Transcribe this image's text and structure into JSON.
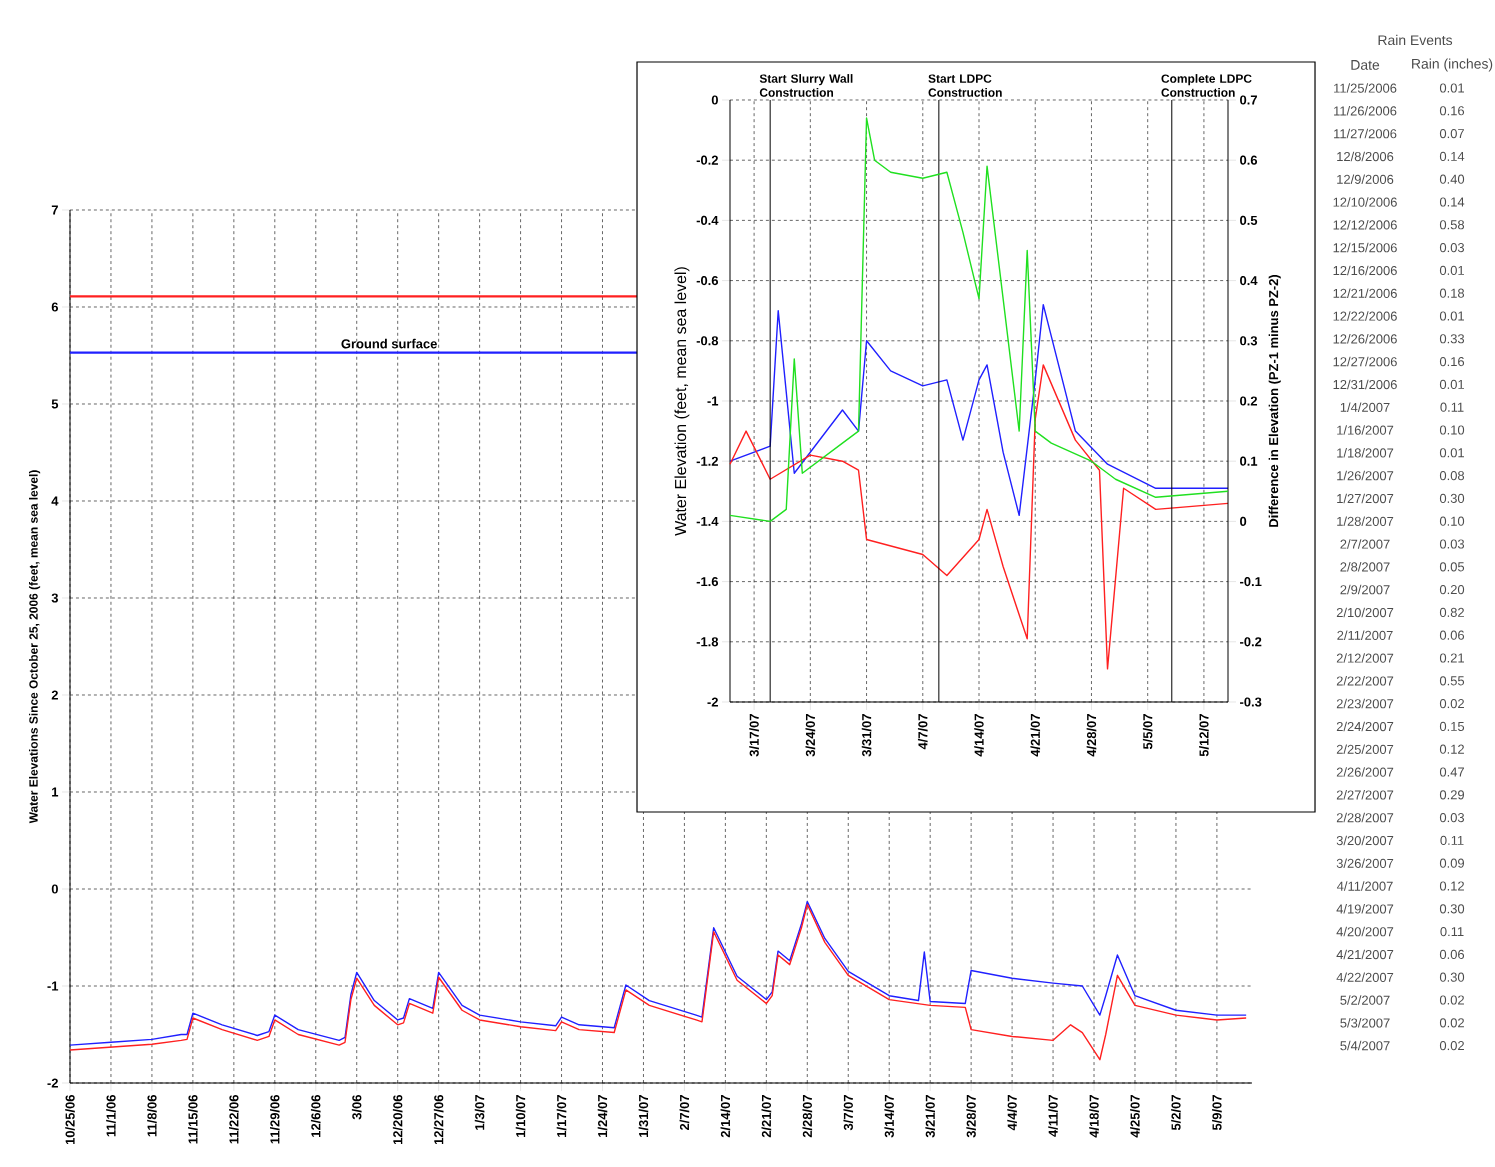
{
  "chart_data": [
    {
      "type": "line",
      "ylabel": "Water Elevations Since October 25, 2006 (feet, mean sea level)",
      "xlim": [
        "2006-10-25",
        "2007-05-15"
      ],
      "ylim": [
        -2,
        7
      ],
      "yticks": [
        -2,
        -1,
        0,
        1,
        2,
        3,
        4,
        5,
        6,
        7
      ],
      "grid": true,
      "xticks": [
        {
          "value": "2006-10-25",
          "label": "10/25/06"
        },
        {
          "value": "2006-11-01",
          "label": "11/1/06"
        },
        {
          "value": "2006-11-08",
          "label": "11/8/06"
        },
        {
          "value": "2006-11-15",
          "label": "11/15/06"
        },
        {
          "value": "2006-11-22",
          "label": "11/22/06"
        },
        {
          "value": "2006-11-29",
          "label": "11/29/06"
        },
        {
          "value": "2006-12-06",
          "label": "12/6/06"
        },
        {
          "value": "2006-12-13",
          "label": "3/06"
        },
        {
          "value": "2006-12-20",
          "label": "12/20/06"
        },
        {
          "value": "2006-12-27",
          "label": "12/27/06"
        },
        {
          "value": "2007-01-03",
          "label": "1/3/07"
        },
        {
          "value": "2007-01-10",
          "label": "1/10/07"
        },
        {
          "value": "2007-01-17",
          "label": "1/17/07"
        },
        {
          "value": "2007-01-24",
          "label": "1/24/07"
        },
        {
          "value": "2007-01-31",
          "label": "1/31/07"
        },
        {
          "value": "2007-02-07",
          "label": "2/7/07"
        },
        {
          "value": "2007-02-14",
          "label": "2/14/07"
        },
        {
          "value": "2007-02-21",
          "label": "2/21/07"
        },
        {
          "value": "2007-02-28",
          "label": "2/28/07"
        },
        {
          "value": "2007-03-07",
          "label": "3/7/07"
        },
        {
          "value": "2007-03-14",
          "label": "3/14/07"
        },
        {
          "value": "2007-03-21",
          "label": "3/21/07"
        },
        {
          "value": "2007-03-28",
          "label": "3/28/07"
        },
        {
          "value": "2007-04-04",
          "label": "4/4/07"
        },
        {
          "value": "2007-04-11",
          "label": "4/11/07"
        },
        {
          "value": "2007-04-18",
          "label": "4/18/07"
        },
        {
          "value": "2007-04-25",
          "label": "4/25/07"
        },
        {
          "value": "2007-05-02",
          "label": "5/2/07"
        },
        {
          "value": "2007-05-09",
          "label": "5/9/07"
        }
      ],
      "ref_lines": [
        {
          "axis": "y",
          "value": 6.11,
          "color": "#ff2020",
          "label": null
        },
        {
          "axis": "y",
          "value": 5.53,
          "color": "#2020ff",
          "label": "Ground surface"
        }
      ],
      "series": [
        {
          "color": "#2020ff",
          "x": [
            "2006-10-25",
            "2006-11-01",
            "2006-11-08",
            "2006-11-13",
            "2006-11-14",
            "2006-11-15",
            "2006-11-20",
            "2006-11-26",
            "2006-11-28",
            "2006-11-29",
            "2006-12-03",
            "2006-12-10",
            "2006-12-11",
            "2006-12-12",
            "2006-12-13",
            "2006-12-16",
            "2006-12-20",
            "2006-12-21",
            "2006-12-22",
            "2006-12-26",
            "2006-12-27",
            "2006-12-31",
            "2007-01-03",
            "2007-01-10",
            "2007-01-16",
            "2007-01-17",
            "2007-01-20",
            "2007-01-26",
            "2007-01-28",
            "2007-02-01",
            "2007-02-09",
            "2007-02-10",
            "2007-02-12",
            "2007-02-16",
            "2007-02-21",
            "2007-02-22",
            "2007-02-23",
            "2007-02-25",
            "2007-02-27",
            "2007-02-28",
            "2007-03-03",
            "2007-03-07",
            "2007-03-14",
            "2007-03-19",
            "2007-03-20",
            "2007-03-21",
            "2007-03-27",
            "2007-03-28",
            "2007-04-04",
            "2007-04-11",
            "2007-04-16",
            "2007-04-19",
            "2007-04-20",
            "2007-04-22",
            "2007-04-25",
            "2007-05-02",
            "2007-05-09",
            "2007-05-14"
          ],
          "values": [
            -1.61,
            -1.58,
            -1.55,
            -1.5,
            -1.5,
            -1.28,
            -1.4,
            -1.51,
            -1.47,
            -1.3,
            -1.45,
            -1.56,
            -1.53,
            -1.09,
            -0.86,
            -1.15,
            -1.35,
            -1.33,
            -1.13,
            -1.23,
            -0.86,
            -1.2,
            -1.3,
            -1.37,
            -1.41,
            -1.32,
            -1.4,
            -1.43,
            -0.99,
            -1.15,
            -1.3,
            -1.32,
            -0.4,
            -0.9,
            -1.14,
            -1.06,
            -0.64,
            -0.74,
            -0.36,
            -0.13,
            -0.51,
            -0.85,
            -1.1,
            -1.15,
            -0.65,
            -1.16,
            -1.18,
            -0.84,
            -0.92,
            -0.97,
            -1.0,
            -1.3,
            -1.1,
            -0.68,
            -1.1,
            -1.25,
            -1.3,
            -1.3
          ]
        },
        {
          "color": "#ff2020",
          "x": [
            "2006-10-25",
            "2006-11-01",
            "2006-11-08",
            "2006-11-13",
            "2006-11-14",
            "2006-11-15",
            "2006-11-20",
            "2006-11-26",
            "2006-11-28",
            "2006-11-29",
            "2006-12-03",
            "2006-12-10",
            "2006-12-11",
            "2006-12-12",
            "2006-12-13",
            "2006-12-16",
            "2006-12-20",
            "2006-12-21",
            "2006-12-22",
            "2006-12-26",
            "2006-12-27",
            "2006-12-31",
            "2007-01-03",
            "2007-01-10",
            "2007-01-16",
            "2007-01-17",
            "2007-01-20",
            "2007-01-26",
            "2007-01-28",
            "2007-02-01",
            "2007-02-09",
            "2007-02-10",
            "2007-02-12",
            "2007-02-16",
            "2007-02-21",
            "2007-02-22",
            "2007-02-23",
            "2007-02-25",
            "2007-02-27",
            "2007-02-28",
            "2007-03-03",
            "2007-03-07",
            "2007-03-14",
            "2007-03-21",
            "2007-03-27",
            "2007-03-28",
            "2007-04-04",
            "2007-04-11",
            "2007-04-14",
            "2007-04-16",
            "2007-04-19",
            "2007-04-20",
            "2007-04-22",
            "2007-04-25",
            "2007-05-02",
            "2007-05-09",
            "2007-05-14"
          ],
          "values": [
            -1.66,
            -1.63,
            -1.6,
            -1.56,
            -1.55,
            -1.33,
            -1.45,
            -1.56,
            -1.52,
            -1.35,
            -1.5,
            -1.61,
            -1.58,
            -1.14,
            -0.92,
            -1.2,
            -1.4,
            -1.38,
            -1.18,
            -1.28,
            -0.91,
            -1.25,
            -1.35,
            -1.42,
            -1.46,
            -1.37,
            -1.45,
            -1.48,
            -1.04,
            -1.2,
            -1.35,
            -1.37,
            -0.44,
            -0.94,
            -1.18,
            -1.1,
            -0.68,
            -0.78,
            -0.4,
            -0.16,
            -0.55,
            -0.89,
            -1.14,
            -1.2,
            -1.22,
            -1.45,
            -1.52,
            -1.56,
            -1.4,
            -1.48,
            -1.76,
            -1.5,
            -0.89,
            -1.2,
            -1.3,
            -1.35,
            -1.33
          ]
        }
      ]
    },
    {
      "type": "line",
      "ylabel": "Water Elevation (feet, mean sea level)",
      "y2label": "Difference in Elevation (PZ-1 minus PZ-2)",
      "xlim": [
        "2007-03-14",
        "2007-05-15"
      ],
      "ylim": [
        -2,
        0
      ],
      "yticks": [
        -2,
        -1.8,
        -1.6,
        -1.4,
        -1.2,
        -1,
        -0.8,
        -0.6,
        -0.4,
        -0.2,
        0
      ],
      "y2lim": [
        -0.3,
        0.7
      ],
      "y2ticks": [
        -0.3,
        -0.2,
        -0.1,
        0,
        0.1,
        0.2,
        0.3,
        0.4,
        0.5,
        0.6,
        0.7
      ],
      "grid": true,
      "xticks": [
        {
          "value": "2007-03-17",
          "label": "3/17/07"
        },
        {
          "value": "2007-03-24",
          "label": "3/24/07"
        },
        {
          "value": "2007-03-31",
          "label": "3/31/07"
        },
        {
          "value": "2007-04-07",
          "label": "4/7/07"
        },
        {
          "value": "2007-04-14",
          "label": "4/14/07"
        },
        {
          "value": "2007-04-21",
          "label": "4/21/07"
        },
        {
          "value": "2007-04-28",
          "label": "4/28/07"
        },
        {
          "value": "2007-05-05",
          "label": "5/5/07"
        },
        {
          "value": "2007-05-12",
          "label": "5/12/07"
        }
      ],
      "ref_lines": [
        {
          "axis": "x",
          "value": "2007-03-19",
          "label": "Start Slurry Wall Construction"
        },
        {
          "axis": "x",
          "value": "2007-04-09",
          "label": "Start LDPC Construction"
        },
        {
          "axis": "x",
          "value": "2007-05-08",
          "label": "Complete LDPC Construction"
        }
      ],
      "series": [
        {
          "color": "#2020ff",
          "x": [
            "2007-03-14",
            "2007-03-19",
            "2007-03-20",
            "2007-03-22",
            "2007-03-28",
            "2007-03-30",
            "2007-03-31",
            "2007-04-03",
            "2007-04-07",
            "2007-04-10",
            "2007-04-12",
            "2007-04-14",
            "2007-04-15",
            "2007-04-17",
            "2007-04-19",
            "2007-04-21",
            "2007-04-22",
            "2007-04-26",
            "2007-04-30",
            "2007-05-06",
            "2007-05-15"
          ],
          "values": [
            -1.2,
            -1.15,
            -0.7,
            -1.24,
            -1.03,
            -1.1,
            -0.8,
            -0.9,
            -0.95,
            -0.93,
            -1.13,
            -0.93,
            -0.88,
            -1.17,
            -1.38,
            -0.93,
            -0.68,
            -1.1,
            -1.21,
            -1.29,
            -1.29
          ]
        },
        {
          "color": "#ff2020",
          "x": [
            "2007-03-14",
            "2007-03-16",
            "2007-03-19",
            "2007-03-24",
            "2007-03-28",
            "2007-03-30",
            "2007-03-31",
            "2007-04-07",
            "2007-04-10",
            "2007-04-14",
            "2007-04-15",
            "2007-04-17",
            "2007-04-20",
            "2007-04-21",
            "2007-04-22",
            "2007-04-26",
            "2007-04-29",
            "2007-04-30",
            "2007-05-02",
            "2007-05-06",
            "2007-05-15"
          ],
          "values": [
            -1.21,
            -1.1,
            -1.26,
            -1.18,
            -1.2,
            -1.23,
            -1.46,
            -1.51,
            -1.58,
            -1.46,
            -1.36,
            -1.55,
            -1.79,
            -1.06,
            -0.88,
            -1.13,
            -1.23,
            -1.89,
            -1.29,
            -1.36,
            -1.34
          ]
        },
        {
          "color": "#20e020",
          "axis": "y2",
          "x": [
            "2007-03-14",
            "2007-03-19",
            "2007-03-21",
            "2007-03-22",
            "2007-03-23",
            "2007-03-28",
            "2007-03-30",
            "2007-03-31",
            "2007-04-01",
            "2007-04-03",
            "2007-04-07",
            "2007-04-10",
            "2007-04-12",
            "2007-04-14",
            "2007-04-15",
            "2007-04-17",
            "2007-04-19",
            "2007-04-20",
            "2007-04-21",
            "2007-04-23",
            "2007-04-28",
            "2007-05-01",
            "2007-05-06",
            "2007-05-15"
          ],
          "values": [
            0.01,
            0.0,
            0.02,
            0.27,
            0.08,
            0.13,
            0.15,
            0.67,
            0.6,
            0.58,
            0.57,
            0.58,
            0.48,
            0.37,
            0.59,
            0.37,
            0.15,
            0.45,
            0.15,
            0.13,
            0.1,
            0.07,
            0.04,
            0.05
          ]
        }
      ]
    },
    {
      "type": "other",
      "title": "Rain Events",
      "xlabel": "Date",
      "ylabel": "Rain (inches)",
      "categories": [
        "11/25/2006",
        "11/26/2006",
        "11/27/2006",
        "12/8/2006",
        "12/9/2006",
        "12/10/2006",
        "12/12/2006",
        "12/15/2006",
        "12/16/2006",
        "12/21/2006",
        "12/22/2006",
        "12/26/2006",
        "12/27/2006",
        "12/31/2006",
        "1/4/2007",
        "1/16/2007",
        "1/18/2007",
        "1/26/2007",
        "1/27/2007",
        "1/28/2007",
        "2/7/2007",
        "2/8/2007",
        "2/9/2007",
        "2/10/2007",
        "2/11/2007",
        "2/12/2007",
        "2/22/2007",
        "2/23/2007",
        "2/24/2007",
        "2/25/2007",
        "2/26/2007",
        "2/27/2007",
        "2/28/2007",
        "3/20/2007",
        "3/26/2007",
        "4/11/2007",
        "4/19/2007",
        "4/20/2007",
        "4/21/2007",
        "4/22/2007",
        "5/2/2007",
        "5/3/2007",
        "5/4/2007"
      ],
      "value_labels": [
        "0.01",
        "0.16",
        "0.07",
        "0.14",
        "0.40",
        "0.14",
        "0.58",
        "0.03",
        "0.01",
        "0.18",
        "0.01",
        "0.33",
        "0.16",
        "0.01",
        "0.11",
        "0.10",
        "0.01",
        "0.08",
        "0.30",
        "0.10",
        "0.03",
        "0.05",
        "0.20",
        "0.82",
        "0.06",
        "0.21",
        "0.55",
        "0.02",
        "0.15",
        "0.12",
        "0.47",
        "0.29",
        "0.03",
        "0.11",
        "0.09",
        "0.12",
        "0.30",
        "0.11",
        "0.06",
        "0.30",
        "0.02",
        "0.02",
        "0.02"
      ]
    }
  ]
}
